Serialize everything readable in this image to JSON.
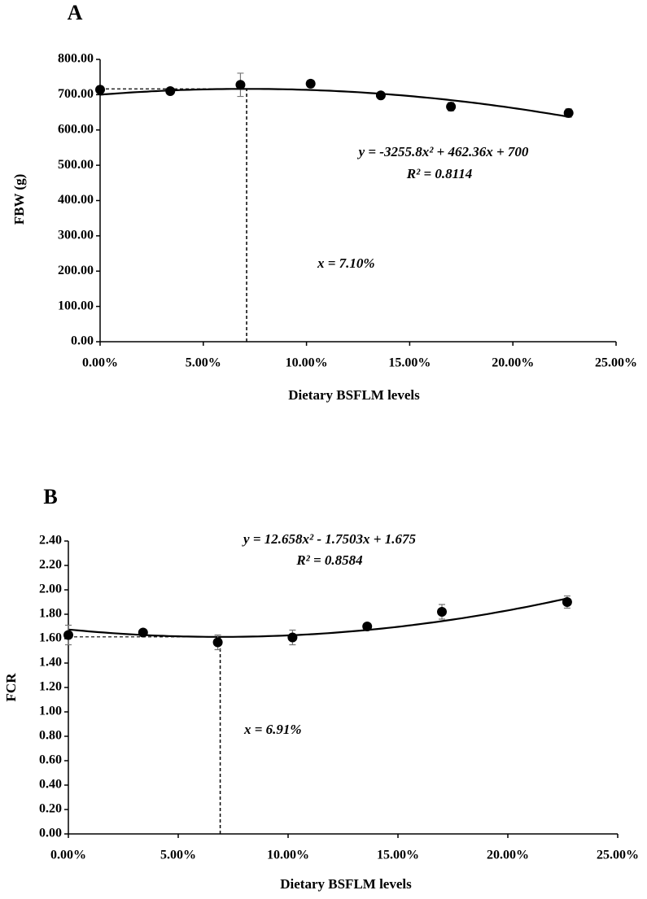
{
  "chart_data": [
    {
      "type": "scatter",
      "panel": "A",
      "xlabel": "Dietary BSFLM levels",
      "ylabel": "FBW (g)",
      "x": [
        0,
        3.4,
        6.8,
        10.2,
        13.6,
        17.0,
        22.7
      ],
      "values": [
        714,
        710,
        728,
        731,
        698,
        666,
        648
      ],
      "errors": [
        10,
        8,
        33,
        10,
        6,
        12,
        12
      ],
      "color": "#000000",
      "trendline": [
        -3255.8,
        462.36,
        700
      ],
      "equation": "y = -3255.8x² + 462.36x + 700",
      "r_squared": "R² = 0.8114",
      "optimum": {
        "value": 7.1,
        "label": "x = 7.10%"
      },
      "xlim": [
        0,
        25
      ],
      "xticks": [
        {
          "value": 0,
          "label": "0.00%"
        },
        {
          "value": 5,
          "label": "5.00%"
        },
        {
          "value": 10,
          "label": "10.00%"
        },
        {
          "value": 15,
          "label": "15.00%"
        },
        {
          "value": 20,
          "label": "20.00%"
        },
        {
          "value": 25,
          "label": "25.00%"
        }
      ],
      "ylim": [
        0,
        800
      ],
      "yticks": [
        {
          "value": 0,
          "label": "0.00"
        },
        {
          "value": 100,
          "label": "100.00"
        },
        {
          "value": 200,
          "label": "200.00"
        },
        {
          "value": 300,
          "label": "300.00"
        },
        {
          "value": 400,
          "label": "400.00"
        },
        {
          "value": 500,
          "label": "500.00"
        },
        {
          "value": 600,
          "label": "600.00"
        },
        {
          "value": 700,
          "label": "700.00"
        },
        {
          "value": 800,
          "label": "800.00"
        }
      ]
    },
    {
      "type": "scatter",
      "panel": "B",
      "xlabel": "Dietary BSFLM levels",
      "ylabel": "FCR",
      "x": [
        0,
        3.4,
        6.8,
        10.2,
        13.6,
        17.0,
        22.7
      ],
      "values": [
        1.63,
        1.65,
        1.57,
        1.61,
        1.7,
        1.82,
        1.9
      ],
      "errors": [
        0.08,
        0.02,
        0.06,
        0.06,
        0.02,
        0.06,
        0.05
      ],
      "color": "#000000",
      "trendline": [
        12.658,
        -1.7503,
        1.675
      ],
      "equation": "y = 12.658x² - 1.7503x + 1.675",
      "r_squared": "R² = 0.8584",
      "optimum": {
        "value": 6.91,
        "label": "x = 6.91%"
      },
      "xlim": [
        0,
        25
      ],
      "xticks": [
        {
          "value": 0,
          "label": "0.00%"
        },
        {
          "value": 5,
          "label": "5.00%"
        },
        {
          "value": 10,
          "label": "10.00%"
        },
        {
          "value": 15,
          "label": "15.00%"
        },
        {
          "value": 20,
          "label": "20.00%"
        },
        {
          "value": 25,
          "label": "25.00%"
        }
      ],
      "ylim": [
        0,
        2.4
      ],
      "yticks": [
        {
          "value": 0,
          "label": "0.00"
        },
        {
          "value": 0.2,
          "label": "0.20"
        },
        {
          "value": 0.4,
          "label": "0.40"
        },
        {
          "value": 0.6,
          "label": "0.60"
        },
        {
          "value": 0.8,
          "label": "0.80"
        },
        {
          "value": 1.0,
          "label": "1.00"
        },
        {
          "value": 1.2,
          "label": "1.20"
        },
        {
          "value": 1.4,
          "label": "1.40"
        },
        {
          "value": 1.6,
          "label": "1.60"
        },
        {
          "value": 1.8,
          "label": "1.80"
        },
        {
          "value": 2.0,
          "label": "2.00"
        },
        {
          "value": 2.2,
          "label": "2.20"
        },
        {
          "value": 2.4,
          "label": "2.40"
        }
      ]
    }
  ]
}
